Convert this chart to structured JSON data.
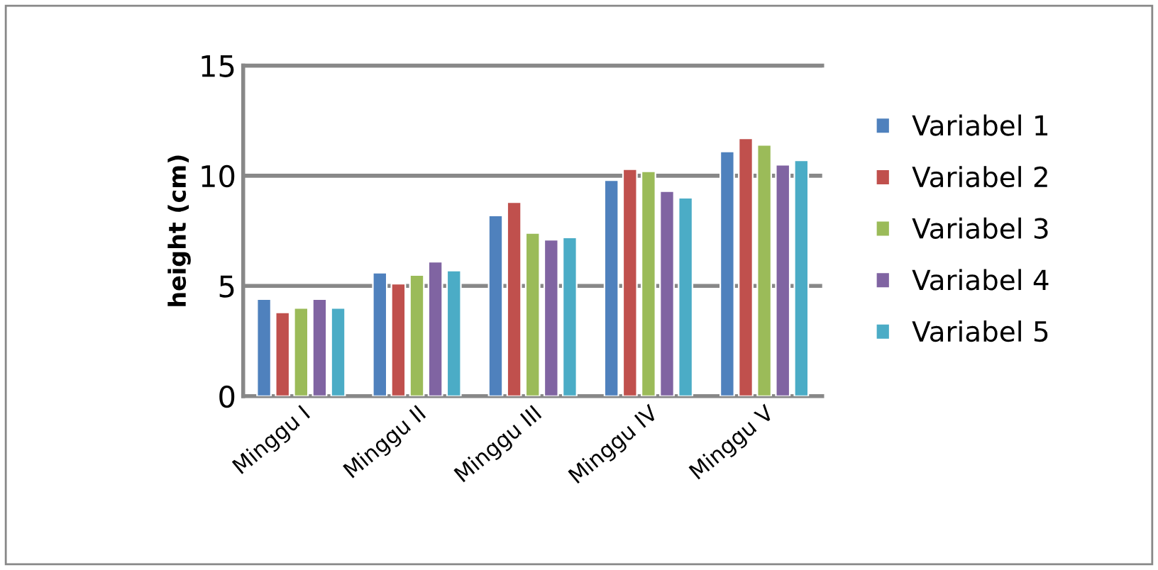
{
  "chart_data": {
    "type": "bar",
    "ylabel": "height (cm)",
    "categories": [
      "Minggu I",
      "Minggu II",
      "Minggu III",
      "Minggu IV",
      "Minggu V"
    ],
    "series": [
      {
        "name": "Variabel 1",
        "color": "#4f81bd",
        "values": [
          4.4,
          5.6,
          8.2,
          9.8,
          11.1
        ]
      },
      {
        "name": "Variabel 2",
        "color": "#c0504d",
        "values": [
          3.8,
          5.1,
          8.8,
          10.3,
          11.7
        ]
      },
      {
        "name": "Variabel 3",
        "color": "#9bbb59",
        "values": [
          4.0,
          5.5,
          7.4,
          10.2,
          11.4
        ]
      },
      {
        "name": "Variabel 4",
        "color": "#8064a2",
        "values": [
          4.4,
          6.1,
          7.1,
          9.3,
          10.5
        ]
      },
      {
        "name": "Variabel 5",
        "color": "#4bacc6",
        "values": [
          4.0,
          5.7,
          7.2,
          9.0,
          10.7
        ]
      }
    ],
    "ylim": [
      0,
      15
    ],
    "yticks": [
      0,
      5,
      10,
      15
    ],
    "grid": "y",
    "legend": "right"
  }
}
